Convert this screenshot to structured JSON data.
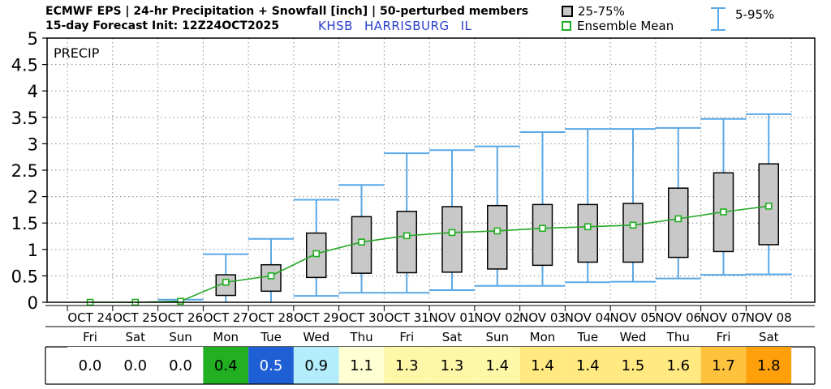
{
  "header": {
    "line1": "ECMWF EPS | 24-hr Precipitation + Snowfall [inch] | 50-perturbed members",
    "line2": "15-day Forecast Init: 12Z24OCT2025",
    "station": "KHSB",
    "city": "HARRISBURG",
    "state": "IL"
  },
  "legend": {
    "box_label": "25-75%",
    "mean_label": "Ensemble Mean",
    "whisker_label": "5-95%"
  },
  "colors": {
    "whisker": "#5aa8e6",
    "box_fill": "#c8c8c8",
    "mean_line": "#27a827",
    "mean_marker": "#1fae1f"
  },
  "chart_data": {
    "type": "box",
    "title": "PRECIP",
    "ylim": [
      0,
      5
    ],
    "yticks": [
      "0",
      "0.5",
      "1",
      "1.5",
      "2",
      "2.5",
      "3",
      "3.5",
      "4",
      "4.5",
      "5"
    ],
    "grid": true,
    "categories": [
      "OCT 24",
      "OCT 25",
      "OCT 26",
      "OCT 27",
      "OCT 28",
      "OCT 29",
      "OCT 30",
      "OCT 31",
      "NOV 01",
      "NOV 02",
      "NOV 03",
      "NOV 04",
      "NOV 05",
      "NOV 06",
      "NOV 07",
      "NOV 08"
    ],
    "weekdays": [
      "Fri",
      "Sat",
      "Sun",
      "Mon",
      "Tue",
      "Wed",
      "Thu",
      "Fri",
      "Sat",
      "Sun",
      "Mon",
      "Tue",
      "Wed",
      "Thu",
      "Fri",
      "Sat"
    ],
    "p5": [
      0,
      0,
      0,
      0,
      0,
      0.12,
      0.18,
      0.18,
      0.23,
      0.31,
      0.31,
      0.38,
      0.39,
      0.45,
      0.52,
      0.53
    ],
    "p25": [
      0,
      0,
      0,
      0.13,
      0.21,
      0.47,
      0.55,
      0.56,
      0.57,
      0.63,
      0.7,
      0.76,
      0.76,
      0.85,
      0.96,
      1.09
    ],
    "p75": [
      0,
      0,
      0,
      0.52,
      0.71,
      1.31,
      1.62,
      1.72,
      1.81,
      1.83,
      1.85,
      1.85,
      1.87,
      2.16,
      2.45,
      2.62
    ],
    "p95": [
      0,
      0,
      0.05,
      0.91,
      1.2,
      1.94,
      2.22,
      2.82,
      2.88,
      2.95,
      3.22,
      3.28,
      3.28,
      3.3,
      3.47,
      3.56
    ],
    "mean": [
      0,
      0,
      0.02,
      0.38,
      0.5,
      0.92,
      1.14,
      1.26,
      1.32,
      1.35,
      1.4,
      1.43,
      1.46,
      1.58,
      1.71,
      1.82
    ],
    "mean_labels": [
      "0.0",
      "0.0",
      "0.0",
      "0.4",
      "0.5",
      "0.9",
      "1.1",
      "1.3",
      "1.3",
      "1.4",
      "1.4",
      "1.4",
      "1.5",
      "1.6",
      "1.7",
      "1.8"
    ],
    "cell_colors": [
      "#ffffff",
      "#ffffff",
      "#ffffff",
      "#22b022",
      "#1f5fd6",
      "#b3ecfb",
      "#ffffd4",
      "#fff7a8",
      "#fff7a8",
      "#fff7a8",
      "#ffe980",
      "#ffe980",
      "#ffe980",
      "#ffe980",
      "#ffc23d",
      "#ff9f0a"
    ]
  }
}
